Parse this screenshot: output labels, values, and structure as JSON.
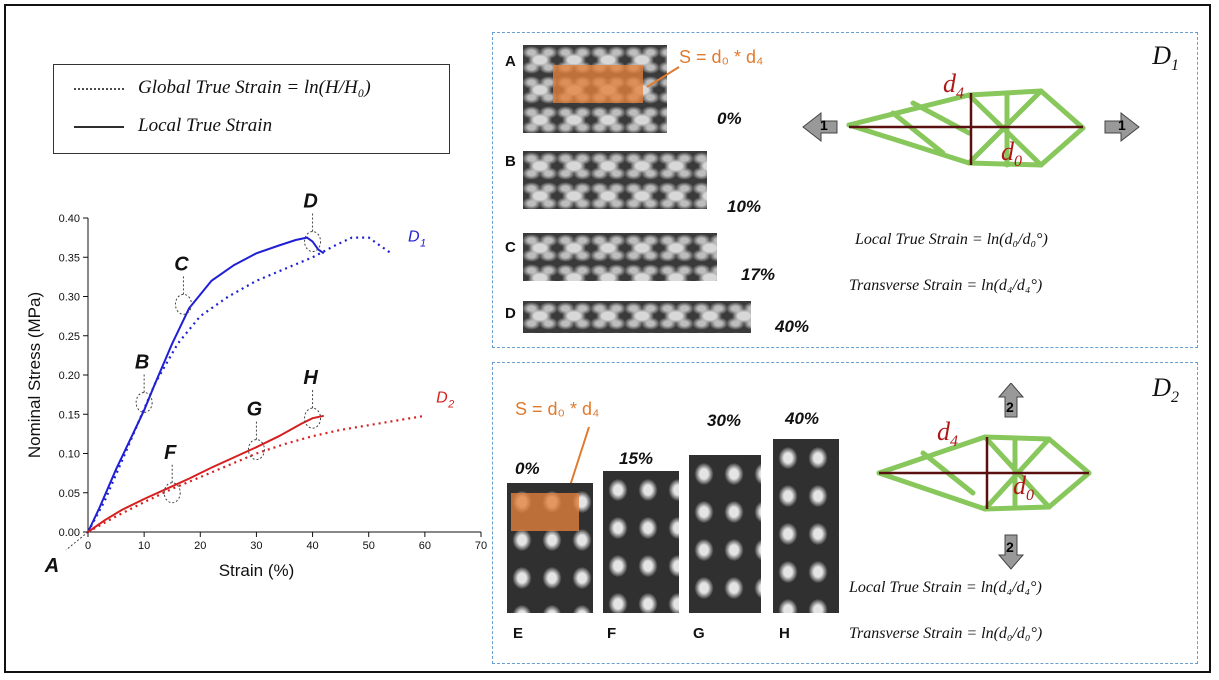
{
  "legend": {
    "global_label": "Global True Strain = ln(H/H₀)",
    "local_label": "Local True Strain"
  },
  "chart_data": {
    "type": "line",
    "xlabel": "Strain (%)",
    "ylabel": "Nominal Stress (MPa)",
    "xlim": [
      0,
      70
    ],
    "ylim": [
      0,
      0.4
    ],
    "xticks": [
      "0",
      "10",
      "20",
      "30",
      "40",
      "50",
      "60",
      "70"
    ],
    "yticks": [
      "0.00",
      "0.05",
      "0.10",
      "0.15",
      "0.20",
      "0.25",
      "0.30",
      "0.35",
      "0.40"
    ],
    "series": [
      {
        "name": "D₁",
        "style": "solid",
        "color": "#1f1fd6",
        "x": [
          0,
          2,
          5,
          8,
          10,
          12,
          15,
          18,
          22,
          26,
          30,
          34,
          37,
          39,
          40,
          41,
          42
        ],
        "y": [
          0,
          0.03,
          0.08,
          0.125,
          0.155,
          0.19,
          0.24,
          0.285,
          0.32,
          0.34,
          0.355,
          0.365,
          0.372,
          0.375,
          0.37,
          0.36,
          0.355
        ]
      },
      {
        "name": "D₁",
        "style": "dotted",
        "color": "#1f1fd6",
        "x": [
          0,
          3,
          6,
          9,
          12,
          16,
          20,
          25,
          30,
          35,
          40,
          44,
          47,
          50,
          52,
          54
        ],
        "y": [
          0,
          0.04,
          0.09,
          0.14,
          0.19,
          0.24,
          0.275,
          0.3,
          0.32,
          0.335,
          0.35,
          0.365,
          0.375,
          0.375,
          0.365,
          0.355
        ]
      },
      {
        "name": "D₂",
        "style": "solid",
        "color": "#d61f1f",
        "x": [
          0,
          3,
          6,
          10,
          14,
          18,
          22,
          26,
          30,
          34,
          38,
          40,
          42
        ],
        "y": [
          0,
          0.015,
          0.028,
          0.042,
          0.055,
          0.068,
          0.082,
          0.095,
          0.108,
          0.122,
          0.138,
          0.145,
          0.148
        ]
      },
      {
        "name": "D₂",
        "style": "dotted",
        "color": "#d61f1f",
        "x": [
          0,
          5,
          10,
          15,
          20,
          25,
          30,
          35,
          40,
          45,
          50,
          55,
          60
        ],
        "y": [
          0,
          0.02,
          0.038,
          0.055,
          0.07,
          0.085,
          0.1,
          0.112,
          0.122,
          0.13,
          0.136,
          0.142,
          0.148
        ]
      }
    ],
    "series_labels": [
      "D",
      "1",
      "D",
      "2"
    ],
    "point_labels": [
      {
        "label": "A",
        "x": 0,
        "y": 0
      },
      {
        "label": "B",
        "x": 10,
        "y": 0.165
      },
      {
        "label": "C",
        "x": 17,
        "y": 0.29
      },
      {
        "label": "D",
        "x": 40,
        "y": 0.37
      },
      {
        "label": "F",
        "x": 15,
        "y": 0.05
      },
      {
        "label": "G",
        "x": 30,
        "y": 0.105
      },
      {
        "label": "H",
        "x": 40,
        "y": 0.145
      }
    ]
  },
  "panel_d1": {
    "title_main": "D",
    "title_sub": "1",
    "specimens": [
      {
        "label": "A",
        "pct": "0%"
      },
      {
        "label": "B",
        "pct": "10%"
      },
      {
        "label": "C",
        "pct": "17%"
      },
      {
        "label": "D",
        "pct": "40%"
      }
    ],
    "area_formula": "S = d₀ * d₄",
    "arrow_label": "1",
    "d4": "d",
    "d4_sub": "4",
    "d0": "d",
    "d0_sub": "0",
    "formula_local": "Local True Strain = ln(d₀/d₀°)",
    "formula_transverse": "Transverse Strain = ln(d₄/d₄°)"
  },
  "panel_d2": {
    "title_main": "D",
    "title_sub": "2",
    "specimens": [
      {
        "label": "E",
        "pct": "0%"
      },
      {
        "label": "F",
        "pct": "15%"
      },
      {
        "label": "G",
        "pct": "30%"
      },
      {
        "label": "H",
        "pct": "40%"
      }
    ],
    "area_formula": "S = d₀ * d₄",
    "arrow_label": "2",
    "d4": "d",
    "d4_sub": "4",
    "d0": "d",
    "d0_sub": "0",
    "formula_local": "Local True Strain = ln(d₄/d₄°)",
    "formula_transverse": "Transverse Strain = ln(d₀/d₀°)"
  },
  "colors": {
    "d1": "#1f1fd6",
    "d2": "#d61f1f",
    "truss": "#7cc24a",
    "dim": "#5a1010",
    "orange": "#e07a2e",
    "panel_border": "#6a9fd0"
  }
}
